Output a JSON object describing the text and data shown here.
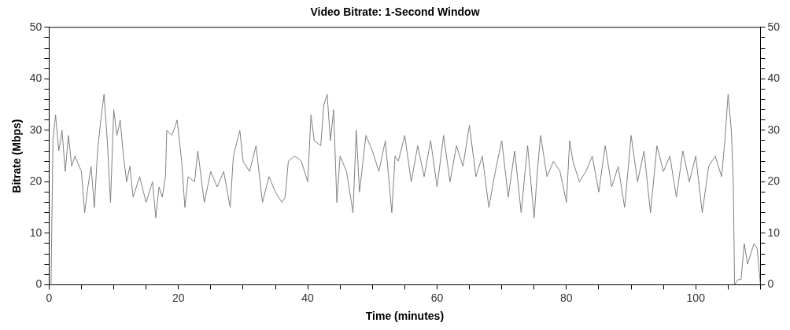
{
  "chart_data": {
    "type": "line",
    "title": "Video Bitrate: 1-Second Window",
    "xlabel": "Time (minutes)",
    "ylabel": "Bitrate (Mbps)",
    "xlim": [
      0,
      110
    ],
    "ylim": [
      0,
      50
    ],
    "y2lim": [
      0,
      50
    ],
    "xticks": [
      0,
      {
        "value": 5,
        "label": null
      },
      {
        "value": 10,
        "label": null
      },
      {
        "value": 15,
        "label": null
      },
      20,
      {
        "value": 25,
        "label": null
      },
      {
        "value": 30,
        "label": null
      },
      {
        "value": 35,
        "label": null
      },
      40,
      {
        "value": 45,
        "label": null
      },
      {
        "value": 50,
        "label": null
      },
      {
        "value": 55,
        "label": null
      },
      60,
      {
        "value": 65,
        "label": null
      },
      {
        "value": 70,
        "label": null
      },
      {
        "value": 75,
        "label": null
      },
      80,
      {
        "value": 85,
        "label": null
      },
      {
        "value": 90,
        "label": null
      },
      {
        "value": 95,
        "label": null
      },
      100,
      {
        "value": 105,
        "label": null
      },
      {
        "value": 110,
        "label": null
      }
    ],
    "yticks": [
      0,
      {
        "value": 2,
        "label": null
      },
      {
        "value": 4,
        "label": null
      },
      {
        "value": 6,
        "label": null
      },
      {
        "value": 8,
        "label": null
      },
      10,
      {
        "value": 12,
        "label": null
      },
      {
        "value": 14,
        "label": null
      },
      {
        "value": 16,
        "label": null
      },
      {
        "value": 18,
        "label": null
      },
      20,
      {
        "value": 22,
        "label": null
      },
      {
        "value": 24,
        "label": null
      },
      {
        "value": 26,
        "label": null
      },
      {
        "value": 28,
        "label": null
      },
      30,
      {
        "value": 32,
        "label": null
      },
      {
        "value": 34,
        "label": null
      },
      {
        "value": 36,
        "label": null
      },
      {
        "value": 38,
        "label": null
      },
      40,
      {
        "value": 42,
        "label": null
      },
      {
        "value": 44,
        "label": null
      },
      {
        "value": 46,
        "label": null
      },
      {
        "value": 48,
        "label": null
      },
      50
    ],
    "y2ticks": [
      0,
      {
        "value": 2,
        "label": null
      },
      {
        "value": 4,
        "label": null
      },
      {
        "value": 6,
        "label": null
      },
      {
        "value": 8,
        "label": null
      },
      10,
      {
        "value": 12,
        "label": null
      },
      {
        "value": 14,
        "label": null
      },
      {
        "value": 16,
        "label": null
      },
      {
        "value": 18,
        "label": null
      },
      20,
      {
        "value": 22,
        "label": null
      },
      {
        "value": 24,
        "label": null
      },
      {
        "value": 26,
        "label": null
      },
      {
        "value": 28,
        "label": null
      },
      30,
      {
        "value": 32,
        "label": null
      },
      {
        "value": 34,
        "label": null
      },
      {
        "value": 36,
        "label": null
      },
      {
        "value": 38,
        "label": null
      },
      40,
      {
        "value": 42,
        "label": null
      },
      {
        "value": 44,
        "label": null
      },
      {
        "value": 46,
        "label": null
      },
      {
        "value": 48,
        "label": null
      },
      50
    ],
    "grid": false,
    "legend": false,
    "marker": "none",
    "line_style": "solid",
    "series": [
      {
        "color": "#808080",
        "x": [
          0,
          0.3,
          0.6,
          1,
          1.5,
          2,
          2.5,
          3,
          3.5,
          4,
          5,
          5.5,
          6,
          6.5,
          7,
          7.5,
          8,
          8.5,
          9,
          9.5,
          10,
          10.5,
          11,
          11.5,
          12,
          12.5,
          13,
          14,
          15,
          16,
          16.5,
          17,
          17.5,
          18,
          18.2,
          19,
          19.8,
          20.5,
          21,
          21.5,
          22.5,
          23,
          24,
          25,
          26,
          27,
          28,
          28.5,
          29.5,
          30,
          31,
          32,
          33,
          34,
          35,
          36,
          36.5,
          37,
          38,
          39,
          40,
          40.5,
          41,
          42,
          42.5,
          43,
          43.5,
          44,
          44.5,
          45,
          46,
          47,
          47.5,
          48,
          49,
          50,
          51,
          52,
          53,
          53.5,
          54,
          55,
          56,
          57,
          58,
          59,
          60,
          61,
          62,
          63,
          64,
          65,
          66,
          67,
          68,
          69,
          70,
          71,
          72,
          73,
          74,
          75,
          75.5,
          76,
          77,
          78,
          79,
          80,
          80.5,
          81,
          82,
          83,
          84,
          85,
          86,
          87,
          88,
          89,
          90,
          91,
          92,
          93,
          94,
          95,
          96,
          97,
          98,
          99,
          100,
          101,
          102,
          103,
          104,
          104.5,
          105,
          105.5,
          105.8,
          106,
          106.5,
          107,
          107.5,
          108,
          109,
          109.5,
          110
        ],
        "values": [
          0,
          0,
          28,
          33,
          26,
          30,
          22,
          29,
          23,
          25,
          22,
          14,
          19,
          23,
          15,
          26,
          32,
          37,
          28,
          16,
          34,
          29,
          32,
          25,
          20,
          23,
          17,
          21,
          16,
          20,
          13,
          19,
          17,
          21,
          30,
          29,
          32,
          24,
          15,
          21,
          20,
          26,
          16,
          22,
          19,
          22,
          15,
          25,
          30,
          24,
          22,
          27,
          16,
          21,
          18,
          16,
          17,
          24,
          25,
          24,
          20,
          33,
          28,
          27,
          35,
          37,
          28,
          34,
          16,
          25,
          22,
          14,
          30,
          18,
          29,
          26,
          22,
          28,
          14,
          25,
          24,
          29,
          20,
          27,
          21,
          28,
          19,
          29,
          20,
          27,
          23,
          31,
          21,
          25,
          15,
          22,
          28,
          17,
          26,
          14,
          27,
          13,
          22,
          29,
          21,
          24,
          22,
          16,
          28,
          24,
          20,
          22,
          25,
          18,
          27,
          19,
          23,
          15,
          29,
          20,
          26,
          14,
          27,
          22,
          25,
          17,
          26,
          20,
          25,
          14,
          23,
          25,
          21,
          28,
          37,
          30,
          20,
          0,
          1,
          1,
          8,
          4,
          8,
          7,
          0
        ]
      }
    ]
  }
}
